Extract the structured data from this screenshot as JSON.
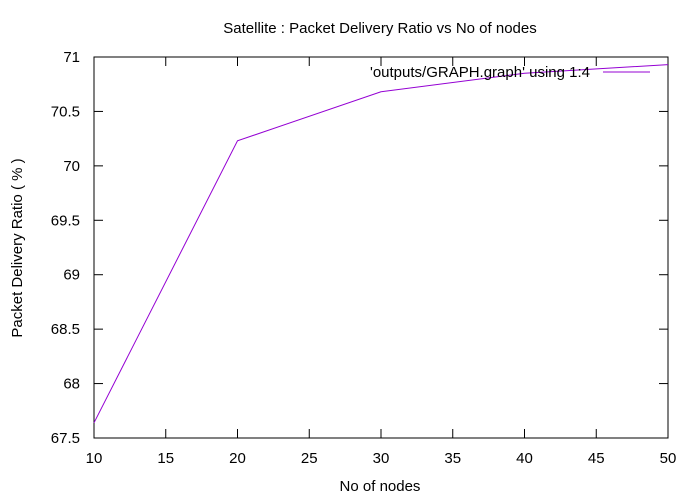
{
  "chart_data": {
    "type": "line",
    "title": "Satellite : Packet Delivery Ratio vs No of nodes",
    "xlabel": "No of nodes",
    "ylabel": "Packet Delivery Ratio ( % )",
    "xlim": [
      10,
      50
    ],
    "ylim": [
      67.5,
      71
    ],
    "xticks": [
      "10",
      "15",
      "20",
      "25",
      "30",
      "35",
      "40",
      "45",
      "50"
    ],
    "yticks": [
      "67.5",
      "68",
      "68.5",
      "69",
      "69.5",
      "70",
      "70.5",
      "71"
    ],
    "grid": false,
    "legend_position": "top-right",
    "series": [
      {
        "name": "'outputs/GRAPH.graph' using 1:4",
        "color": "#9400d3",
        "x": [
          10,
          20,
          30,
          40,
          50
        ],
        "y": [
          67.64,
          70.23,
          70.68,
          70.85,
          70.93
        ]
      }
    ]
  }
}
